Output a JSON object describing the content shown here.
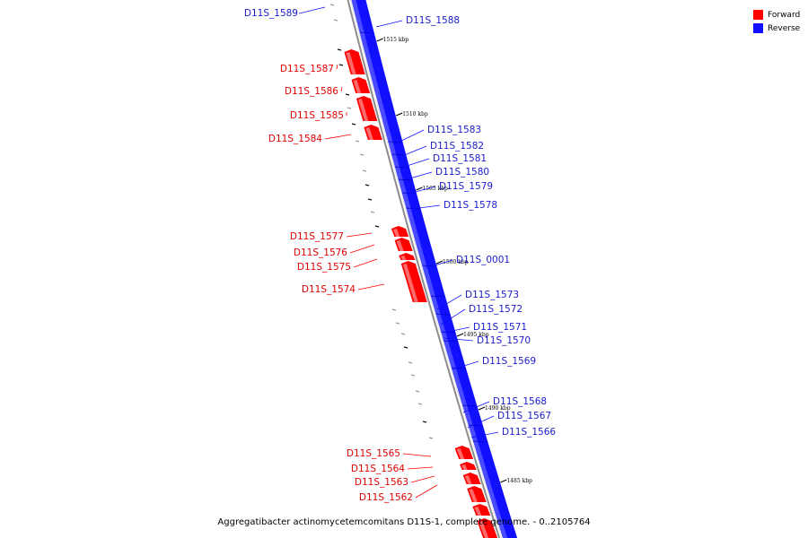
{
  "legend": {
    "forward_label": "Forward",
    "reverse_label": "Reverse",
    "forward_color": "#ff0000",
    "reverse_color": "#1010ff"
  },
  "caption": "Aggregatibacter actinomycetemcomitans D11S-1, complete genome. - 0..2105764",
  "ticks": [
    "1515 kbp",
    "1510 kbp",
    "1505 kbp",
    "1500 kbp",
    "1495 kbp",
    "1490 kbp",
    "1485 kbp"
  ],
  "forward_genes": [
    "D11S_1587",
    "D11S_1586",
    "D11S_1585",
    "D11S_1584",
    "D11S_1577",
    "D11S_1576",
    "D11S_1575",
    "D11S_1574",
    "D11S_1565",
    "D11S_1564",
    "D11S_1563",
    "D11S_1562"
  ],
  "reverse_genes": [
    "D11S_1589",
    "D11S_1588",
    "D11S_1583",
    "D11S_1582",
    "D11S_1581",
    "D11S_1580",
    "D11S_1579",
    "D11S_1578",
    "D11S_0001",
    "D11S_1573",
    "D11S_1572",
    "D11S_1571",
    "D11S_1570",
    "D11S_1569",
    "D11S_1568",
    "D11S_1567",
    "D11S_1566"
  ]
}
